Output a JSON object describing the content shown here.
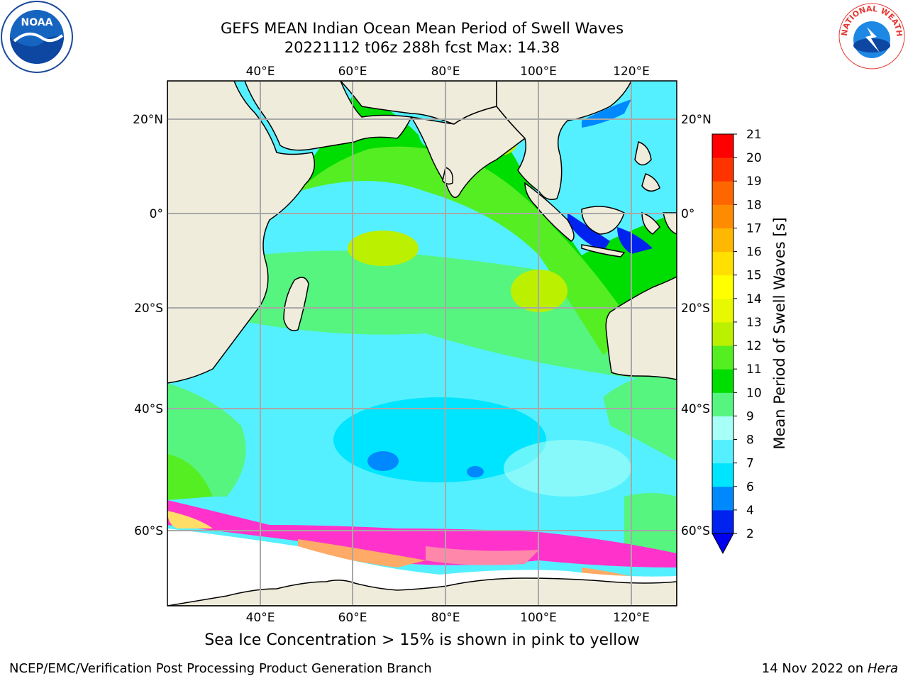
{
  "title": {
    "line1": "GEFS MEAN Indian Ocean Mean Period of Swell Waves",
    "line2": "20221112 t06z 288h fcst   Max: 14.38"
  },
  "map": {
    "lon_min": 20,
    "lon_max": 130,
    "lat_min": -70,
    "lat_max": 27,
    "lon_ticks": [
      "40°E",
      "60°E",
      "80°E",
      "100°E",
      "120°E"
    ],
    "lat_ticks": [
      "20°N",
      "0°",
      "20°S",
      "40°S",
      "60°S"
    ],
    "gridlines": true,
    "land_color": "#efecdc",
    "ice_colors": [
      "#ff33cc",
      "#ff88aa",
      "#ffaa66",
      "#ffdd66"
    ]
  },
  "colorbar": {
    "label": "Mean Period of Swell Waves [s]",
    "ticks": [
      "2",
      "4",
      "6",
      "7",
      "8",
      "9",
      "10",
      "11",
      "12",
      "13",
      "14",
      "15",
      "16",
      "17",
      "18",
      "19",
      "20",
      "21"
    ],
    "colors": [
      "#0022ee",
      "#0088ff",
      "#00e5ff",
      "#55f0ff",
      "#a8fff8",
      "#55f580",
      "#00dd00",
      "#55ee22",
      "#bbf000",
      "#e8f800",
      "#ffff00",
      "#ffe000",
      "#ffb800",
      "#ff8c00",
      "#ff6600",
      "#ff3300",
      "#ff0000"
    ],
    "under_color": "#0000ee"
  },
  "footer": {
    "note": "Sea Ice Concentration > 15% is shown in pink to yellow",
    "left": "NCEP/EMC/Verification Post Processing Product Generation Branch",
    "right_date": "14 Nov 2022 on",
    "right_machine": "Hera"
  },
  "logos": {
    "noaa_text": "NOAA",
    "nws_text": "NATIONAL WEATHER SERVICE"
  }
}
